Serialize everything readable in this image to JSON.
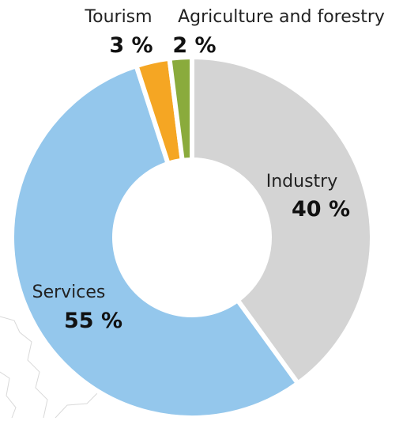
{
  "chart_data": {
    "type": "pie",
    "donut": true,
    "categories": [
      "Industry",
      "Services",
      "Tourism",
      "Agriculture and forestry"
    ],
    "values": [
      40,
      55,
      3,
      2
    ],
    "value_labels": [
      "40 %",
      "55 %",
      "3 %",
      "2 %"
    ],
    "colors": [
      "#d4d4d4",
      "#94c7ec",
      "#f5a623",
      "#8aab3c"
    ],
    "title": ""
  }
}
